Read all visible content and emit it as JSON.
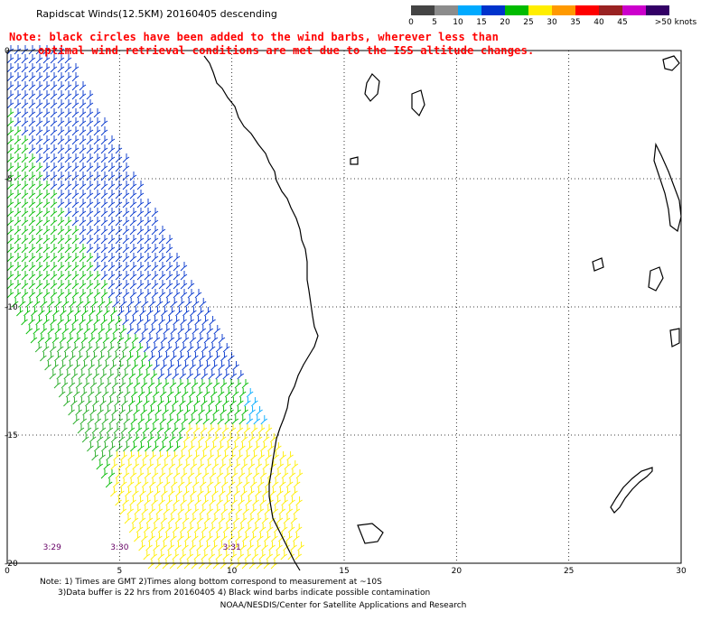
{
  "header": {
    "title": "Rapidscat Winds(12.5KM) 20160405 descending",
    "note_line1": "Note: black circles have been added to the wind barbs, wherever less than",
    "note_line2": "optimal wind retrieval conditions are met due to the ISS altitude changes."
  },
  "legend": {
    "ticks": [
      "0",
      "5",
      "10",
      "15",
      "20",
      "25",
      "30",
      "35",
      "40",
      "45",
      ">50 knots"
    ],
    "colors": [
      "#444444",
      "#8c8c8c",
      "#00aaff",
      "#0033cc",
      "#00bb00",
      "#ffee00",
      "#ff9900",
      "#ff0000",
      "#992222",
      "#cc00cc",
      "#330066"
    ]
  },
  "axes": {
    "x_ticks": [
      "0",
      "5",
      "10",
      "15",
      "20",
      "25",
      "30"
    ],
    "y_ticks": [
      "0",
      "-5",
      "-10",
      "-15",
      "-20"
    ],
    "x_range": [
      0,
      30
    ],
    "y_range": [
      0,
      -20
    ],
    "grid": true
  },
  "time_labels": [
    "3:29",
    "3:30",
    "3:31"
  ],
  "time_label_x": [
    2,
    5,
    10
  ],
  "footer": {
    "line1": "Note: 1) Times are GMT 2)Times along bottom correspond to measurement at ~10S",
    "line2": "3)Data buffer is 22 hrs from 20160405 4) Black wind barbs indicate possible contamination",
    "credit": "NOAA/NESDIS/Center for Satellite Applications and Research"
  }
}
